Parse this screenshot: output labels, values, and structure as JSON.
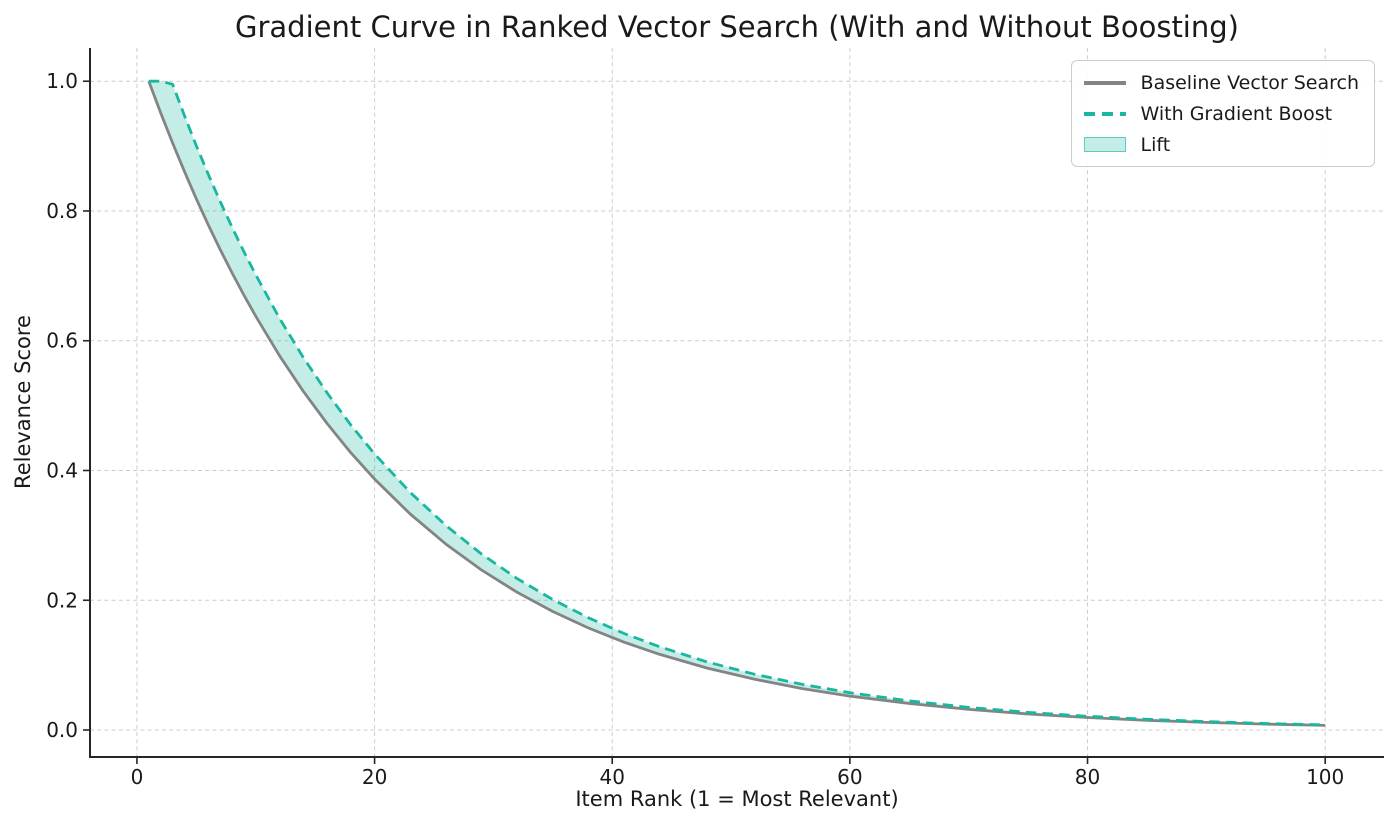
{
  "chart_data": {
    "type": "line",
    "title": "Gradient Curve in Ranked Vector Search (With and Without Boosting)",
    "xlabel": "Item Rank (1 = Most Relevant)",
    "ylabel": "Relevance Score",
    "xlim": [
      -3.95,
      104.95
    ],
    "ylim": [
      -0.0416,
      1.0512
    ],
    "x_ticks": [
      0,
      20,
      40,
      60,
      80,
      100
    ],
    "x_tick_labels": [
      "0",
      "20",
      "40",
      "60",
      "80",
      "100"
    ],
    "y_ticks": [
      0.0,
      0.2,
      0.4,
      0.6,
      0.8,
      1.0
    ],
    "y_tick_labels": [
      "0.0",
      "0.2",
      "0.4",
      "0.6",
      "0.8",
      "1.0"
    ],
    "grid": "dashed-both-axes",
    "legend_position": "upper-right",
    "background": "#ffffff",
    "grid_color": "#cccccc",
    "text_color": "#1a1a1a",
    "x": [
      1,
      2,
      3,
      4,
      5,
      6,
      7,
      8,
      9,
      10,
      12,
      14,
      16,
      18,
      20,
      23,
      26,
      29,
      32,
      35,
      38,
      41,
      44,
      48,
      52,
      56,
      60,
      65,
      70,
      75,
      80,
      85,
      90,
      95,
      100
    ],
    "series": [
      {
        "name": "Baseline Vector Search",
        "color": "#848484",
        "style": "solid",
        "values": [
          1.0,
          0.9512,
          0.9048,
          0.8607,
          0.8187,
          0.7788,
          0.7408,
          0.7047,
          0.6703,
          0.6376,
          0.5769,
          0.522,
          0.4724,
          0.4274,
          0.3867,
          0.3329,
          0.2865,
          0.2466,
          0.2122,
          0.1827,
          0.1572,
          0.1353,
          0.1165,
          0.0954,
          0.0781,
          0.0639,
          0.0523,
          0.0408,
          0.0317,
          0.0247,
          0.0193,
          0.015,
          0.0117,
          0.0091,
          0.0071
        ]
      },
      {
        "name": "With Gradient Boost",
        "color": "#19b7a0",
        "style": "dashed",
        "values": [
          1.0,
          1.0,
          0.9953,
          0.9468,
          0.9006,
          0.8567,
          0.8149,
          0.7752,
          0.7373,
          0.7014,
          0.6346,
          0.5742,
          0.5196,
          0.4701,
          0.4254,
          0.3662,
          0.3152,
          0.2713,
          0.2334,
          0.201,
          0.1729,
          0.1488,
          0.1282,
          0.1049,
          0.0859,
          0.0703,
          0.0575,
          0.0449,
          0.0349,
          0.0272,
          0.0212,
          0.0165,
          0.0129,
          0.01,
          0.0078
        ]
      }
    ],
    "fill_between": {
      "name": "Lift",
      "color": "#19b7a0",
      "opacity": 0.25
    }
  }
}
